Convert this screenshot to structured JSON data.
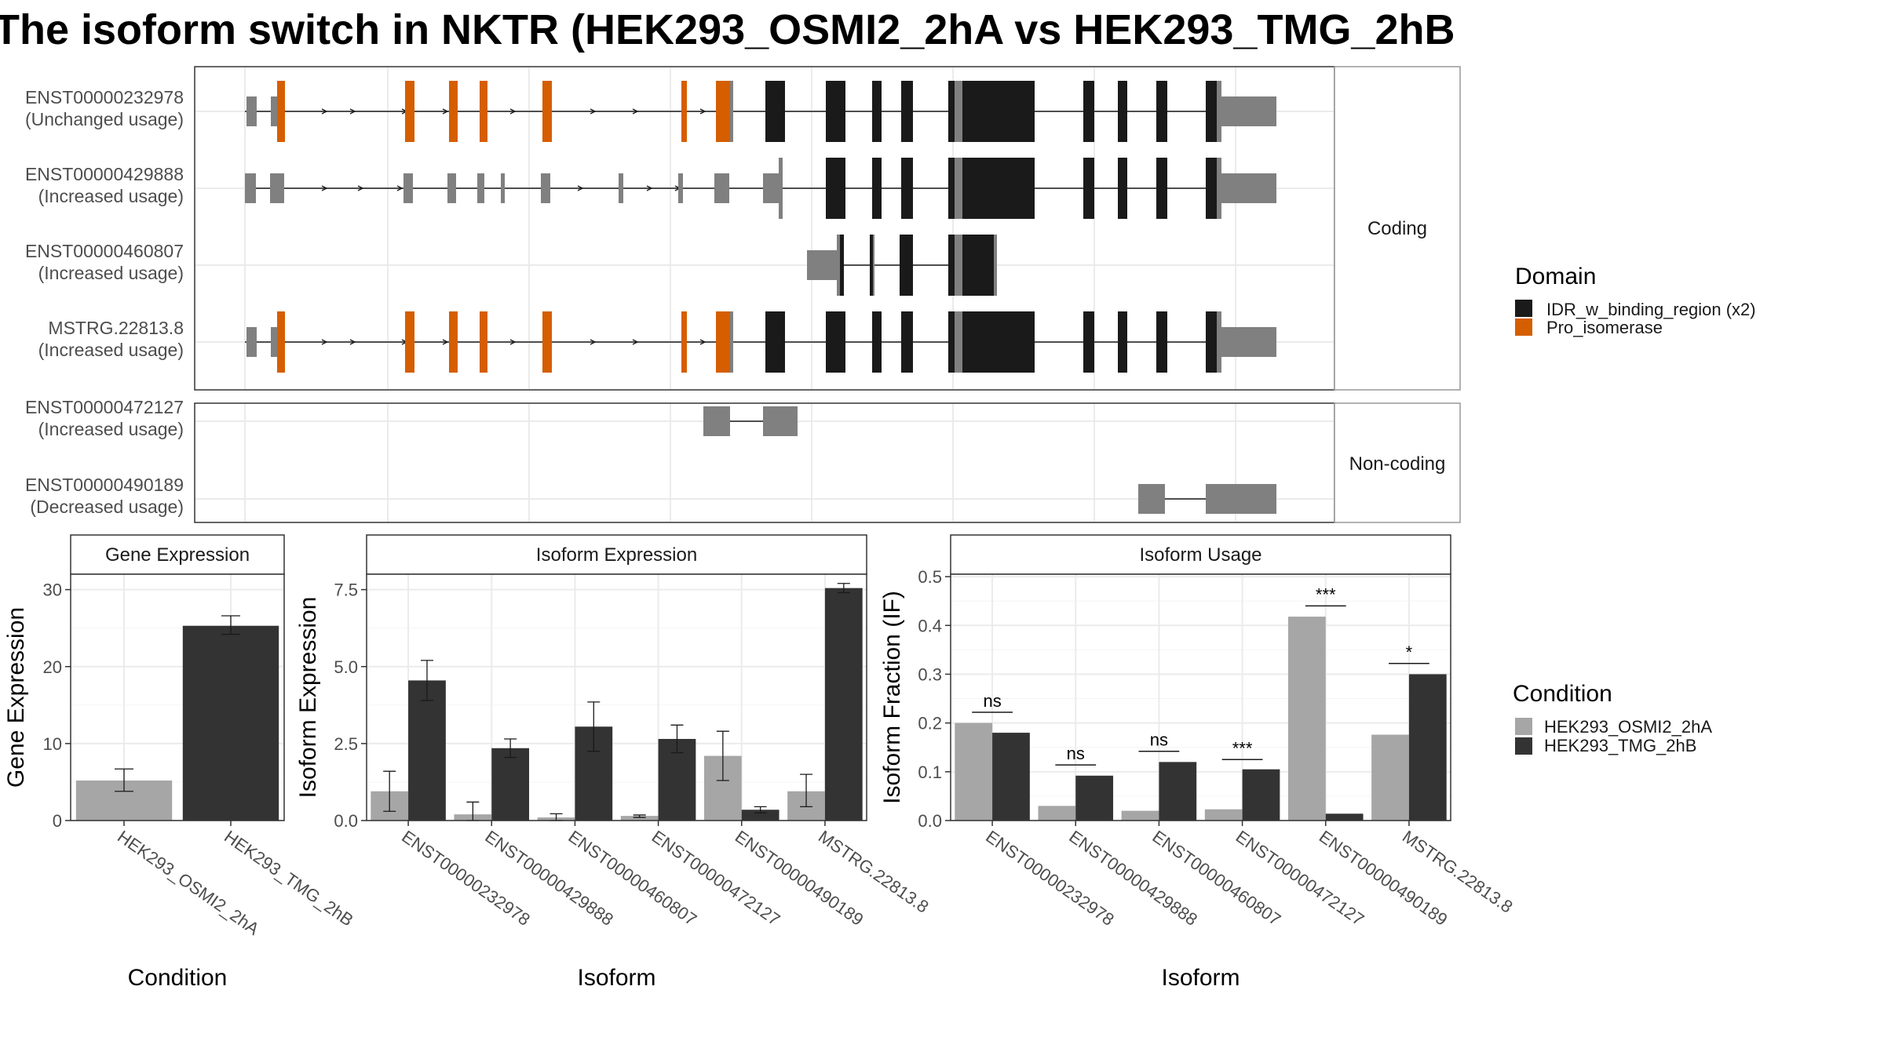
{
  "title": "The isoform switch in NKTR (HEK293_OSMI2_2hA vs HEK293_TMG_2hB",
  "colors": {
    "idr": "#1a1a1a",
    "pro": "#d55e00",
    "utr": "#808080",
    "osmi": "#a6a6a6",
    "tmg": "#333333"
  },
  "structure": {
    "panels": [
      {
        "strip": "Coding",
        "transcripts": [
          {
            "id": "ENST00000232978",
            "usage": "(Unchanged usage)"
          },
          {
            "id": "ENST00000429888",
            "usage": "(Increased usage)"
          },
          {
            "id": "ENST00000460807",
            "usage": "(Increased usage)"
          },
          {
            "id": "MSTRG.22813.8",
            "usage": "(Increased usage)"
          }
        ]
      },
      {
        "strip": "Non-coding",
        "transcripts": [
          {
            "id": "ENST00000472127",
            "usage": "(Increased usage)"
          },
          {
            "id": "ENST00000490189",
            "usage": "(Decreased usage)"
          }
        ]
      }
    ]
  },
  "legend_domain": {
    "title": "Domain",
    "items": [
      {
        "label": "IDR_w_binding_region (x2)",
        "color": "#1a1a1a"
      },
      {
        "label": "Pro_isomerase",
        "color": "#d55e00"
      }
    ]
  },
  "legend_condition": {
    "title": "Condition",
    "items": [
      {
        "label": "HEK293_OSMI2_2hA",
        "color": "#a6a6a6"
      },
      {
        "label": "HEK293_TMG_2hB",
        "color": "#333333"
      }
    ]
  },
  "chart_data": [
    {
      "type": "bar",
      "title": "Gene Expression",
      "xlabel": "Condition",
      "ylabel": "Gene Expression",
      "ylim": [
        0,
        32
      ],
      "yticks": [
        0,
        10,
        20,
        30
      ],
      "categories": [
        "HEK293_OSMI2_2hA",
        "HEK293_TMG_2hB"
      ],
      "values": [
        5.2,
        25.3
      ],
      "error": [
        [
          3.8,
          6.7
        ],
        [
          24.2,
          26.6
        ]
      ],
      "colors": [
        "#a6a6a6",
        "#333333"
      ]
    },
    {
      "type": "bar",
      "title": "Isoform Expression",
      "xlabel": "Isoform",
      "ylabel": "Isoform Expression",
      "ylim": [
        0,
        8
      ],
      "yticks": [
        0.0,
        2.5,
        5.0,
        7.5
      ],
      "categories": [
        "ENST00000232978",
        "ENST00000429888",
        "ENST00000460807",
        "ENST00000472127",
        "ENST00000490189",
        "MSTRG.22813.8"
      ],
      "series": [
        {
          "name": "HEK293_OSMI2_2hA",
          "values": [
            0.95,
            0.2,
            0.1,
            0.15,
            2.1,
            0.95
          ],
          "error": [
            [
              0.3,
              1.6
            ],
            [
              0.0,
              0.6
            ],
            [
              0.0,
              0.22
            ],
            [
              0.1,
              0.18
            ],
            [
              1.3,
              2.9
            ],
            [
              0.45,
              1.5
            ]
          ]
        },
        {
          "name": "HEK293_TMG_2hB",
          "values": [
            4.55,
            2.35,
            3.05,
            2.65,
            0.35,
            7.55
          ],
          "error": [
            [
              3.9,
              5.2
            ],
            [
              2.05,
              2.65
            ],
            [
              2.25,
              3.85
            ],
            [
              2.2,
              3.1
            ],
            [
              0.25,
              0.45
            ],
            [
              7.4,
              7.7
            ]
          ]
        }
      ]
    },
    {
      "type": "bar",
      "title": "Isoform Usage",
      "xlabel": "Isoform",
      "ylabel": "Isoform Fraction (IF)",
      "ylim": [
        0,
        0.505
      ],
      "yticks": [
        0.0,
        0.1,
        0.2,
        0.3,
        0.4,
        0.5
      ],
      "categories": [
        "ENST00000232978",
        "ENST00000429888",
        "ENST00000460807",
        "ENST00000472127",
        "ENST00000490189",
        "MSTRG.22813.8"
      ],
      "series": [
        {
          "name": "HEK293_OSMI2_2hA",
          "values": [
            0.2,
            0.03,
            0.02,
            0.023,
            0.418,
            0.176
          ]
        },
        {
          "name": "HEK293_TMG_2hB",
          "values": [
            0.18,
            0.092,
            0.12,
            0.105,
            0.014,
            0.3
          ]
        }
      ],
      "significance": [
        "ns",
        "ns",
        "ns",
        "***",
        "***",
        "*"
      ],
      "significance_y": [
        0.222,
        0.114,
        0.142,
        0.125,
        0.44,
        0.322
      ]
    }
  ]
}
